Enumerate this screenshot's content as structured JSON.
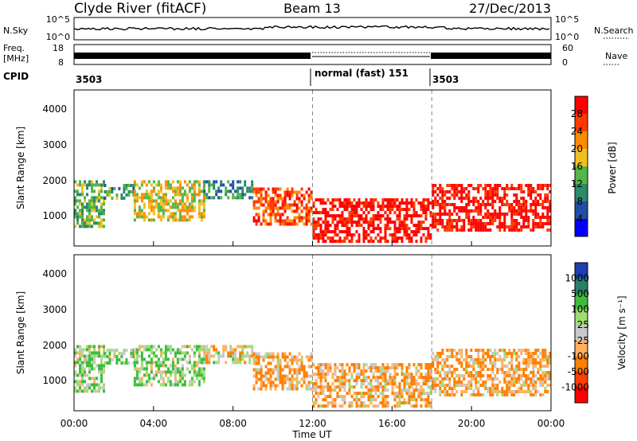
{
  "header": {
    "radar": "Clyde River (fitACF)",
    "beam": "Beam 13",
    "date": "27/Dec/2013"
  },
  "top_panel": {
    "nsky_label": "N.Sky",
    "nsky_ticks": [
      "10^5",
      "10^0"
    ],
    "nsearch_label": "N.Search",
    "nsearch_ticks": [
      "10^5",
      "10^0"
    ],
    "freq_label_line1": "Freq.",
    "freq_label_line2": "[MHz]",
    "freq_ticks": [
      "18",
      "8"
    ],
    "nave_label": "Nave",
    "nave_ticks": [
      "60",
      "0"
    ],
    "cpid_label": "CPID",
    "cpid_segments": [
      {
        "label": "3503",
        "start_hour": 0
      },
      {
        "label": "normal (fast) 151",
        "start_hour": 12
      },
      {
        "label": "3503",
        "start_hour": 18
      }
    ]
  },
  "power_panel": {
    "ylabel": "Slant Range [km]",
    "yticks": [
      "1000",
      "2000",
      "3000",
      "4000"
    ],
    "colorbar_label": "Power [dB]",
    "colorbar_ticks": [
      "4",
      "8",
      "12",
      "16",
      "20",
      "24",
      "28"
    ],
    "colors": [
      "#0000ff",
      "#1f4fa3",
      "#2a8a6a",
      "#55b545",
      "#f0c020",
      "#ff8c00",
      "#ff3a00",
      "#ff0000"
    ]
  },
  "velocity_panel": {
    "ylabel": "Slant Range [km]",
    "yticks": [
      "1000",
      "2000",
      "3000",
      "4000"
    ],
    "colorbar_label": "Velocity [m s⁻¹]",
    "colorbar_ticks": [
      "1000",
      "500",
      "100",
      "25",
      "-25",
      "-100",
      "-500",
      "-1000"
    ],
    "colors": [
      "#1e3fb0",
      "#2a7f6a",
      "#3bbd3b",
      "#9fdd70",
      "#c8c8c8",
      "#ffb060",
      "#ff7f00",
      "#ff4000",
      "#ff0000"
    ]
  },
  "xaxis": {
    "xlabel": "Time UT",
    "ticks": [
      "00:00",
      "04:00",
      "08:00",
      "12:00",
      "16:00",
      "20:00",
      "00:00"
    ]
  },
  "chart_data": {
    "type": "heatmap",
    "x_unit": "hours UT",
    "xlim": [
      0,
      24
    ],
    "y_unit": "km",
    "ylim": [
      180,
      4500
    ],
    "regions": [
      {
        "t0": 0.0,
        "t1": 1.5,
        "r0": 700,
        "r1": 2000,
        "power_db": 12,
        "velocity": 100
      },
      {
        "t0": 1.5,
        "t1": 3.0,
        "r0": 1500,
        "r1": 1900,
        "power_db": 10,
        "velocity": 100
      },
      {
        "t0": 3.0,
        "t1": 6.5,
        "r0": 900,
        "r1": 2000,
        "power_db": 16,
        "velocity": 100
      },
      {
        "t0": 6.5,
        "t1": 9.0,
        "r0": 1500,
        "r1": 2000,
        "power_db": 8,
        "velocity": -25
      },
      {
        "t0": 9.0,
        "t1": 12.0,
        "r0": 800,
        "r1": 1800,
        "power_db": 24,
        "velocity": -100
      },
      {
        "t0": 12.0,
        "t1": 18.0,
        "r0": 300,
        "r1": 1500,
        "power_db": 28,
        "velocity": -100
      },
      {
        "t0": 18.0,
        "t1": 24.0,
        "r0": 600,
        "r1": 1900,
        "power_db": 28,
        "velocity": -100
      }
    ]
  }
}
